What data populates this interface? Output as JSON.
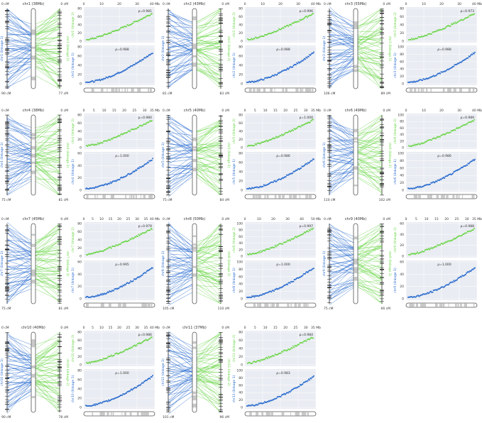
{
  "colors": {
    "blue": "#2f6fd0",
    "green": "#6cd64a",
    "panel_bg": "#e9ecf2",
    "grid": "#ffffff",
    "chrom_band": "#c9c9c9",
    "chrom_edge": "#555555",
    "text": "#333333"
  },
  "figure": {
    "panels": [
      {
        "id": "chr1",
        "chrom": "chr1 (38Mb)",
        "left_cm": "90 cM",
        "right_cm": "77 cM",
        "left_label": "chr1 (linkage 1)",
        "right_label": "chr1 (linkage 2)",
        "ticks": [
          "0",
          "10",
          "20",
          "30",
          "40 Mb"
        ],
        "r_top": "ρ=0.981",
        "r_bot": "ρ=0.988",
        "y_top": [
          0,
          20,
          40,
          60,
          80
        ],
        "y_bot": [
          0,
          20,
          40,
          60,
          80
        ]
      },
      {
        "id": "chr2",
        "chrom": "chr2 (43Mb)",
        "left_cm": "81 cM",
        "right_cm": "83 cM",
        "left_label": "chr2 (linkage 1)",
        "right_label": "chr2 (linkage 2)",
        "ticks": [
          "0",
          "10",
          "20",
          "30",
          "40 Mb"
        ],
        "r_top": "ρ=0.996",
        "r_bot": "ρ=0.988",
        "y_top": [
          0,
          20,
          40,
          60,
          80
        ],
        "y_bot": [
          0,
          20,
          40,
          60,
          80
        ]
      },
      {
        "id": "chr3",
        "chrom": "chr3 (55Mb)",
        "left_cm": "106 cM",
        "right_cm": "89 cM",
        "left_label": "chr3 (linkage 1)",
        "right_label": "chr3 (linkage 2)",
        "ticks": [
          "0",
          "10",
          "20",
          "30",
          "40 Mb"
        ],
        "r_top": "ρ=0.973",
        "r_bot": "ρ=0.988",
        "y_top": [
          0,
          20,
          40,
          60,
          80
        ],
        "y_bot": [
          0,
          20,
          40,
          60,
          80,
          100
        ]
      },
      {
        "id": "chr4",
        "chrom": "chr4 (38Mb)",
        "left_cm": "75 cM",
        "right_cm": "81 cM",
        "left_label": "chr4 (linkage 1)",
        "right_label": "chr4 (linkage 2)",
        "ticks": [
          "0",
          "5",
          "10",
          "15",
          "20",
          "25",
          "30",
          "35 Mb"
        ],
        "r_top": "ρ=0.980",
        "r_bot": "ρ=1.000",
        "y_top": [
          0,
          20,
          40,
          60,
          80
        ],
        "y_bot": [
          0,
          20,
          40,
          60
        ]
      },
      {
        "id": "chr5",
        "chrom": "chr5 (40Mb)",
        "left_cm": "75 cM",
        "right_cm": "84 cM",
        "left_label": "chr5 (linkage 1)",
        "right_label": "chr5 (linkage 2)",
        "ticks": [
          "0",
          "5",
          "10",
          "15",
          "20",
          "25",
          "30",
          "35 Mb"
        ],
        "r_top": "ρ=1.000",
        "r_bot": "ρ=0.986",
        "y_top": [
          0,
          20,
          40,
          60,
          80
        ],
        "y_bot": [
          0,
          20,
          40,
          60,
          80
        ]
      },
      {
        "id": "chr6",
        "chrom": "chr6 (49Mb)",
        "left_cm": "110 cM",
        "right_cm": "102 cM",
        "left_label": "chr6 (linkage 1)",
        "right_label": "chr6 (linkage 2)",
        "ticks": [
          "0",
          "10",
          "20",
          "30",
          "40 Mb"
        ],
        "r_top": "ρ=0.989",
        "r_bot": "ρ=0.986",
        "y_top": [
          0,
          20,
          40,
          60,
          80,
          100
        ],
        "y_bot": [
          0,
          20,
          40,
          60,
          80,
          100
        ]
      },
      {
        "id": "chr7",
        "chrom": "chr7 (45Mb)",
        "left_cm": "75 cM",
        "right_cm": "81 cM",
        "left_label": "chr7 (linkage 1)",
        "right_label": "chr7 (linkage 2)",
        "ticks": [
          "0",
          "5",
          "10",
          "15",
          "20",
          "25",
          "30",
          "35",
          "40 Mb"
        ],
        "r_top": "ρ=0.979",
        "r_bot": "ρ=0.995",
        "y_top": [
          0,
          20,
          40,
          60,
          80
        ],
        "y_bot": [
          0,
          20,
          40,
          60
        ]
      },
      {
        "id": "chr8",
        "chrom": "chr8 (50Mb)",
        "left_cm": "105 cM",
        "right_cm": "110 cM",
        "left_label": "chr8 (linkage 1)",
        "right_label": "chr8 (linkage 2)",
        "ticks": [
          "0",
          "10",
          "20",
          "30",
          "40",
          "50 Mb"
        ],
        "r_top": "ρ=0.997",
        "r_bot": "ρ=1.000",
        "y_top": [
          0,
          20,
          40,
          60,
          80,
          100
        ],
        "y_bot": [
          0,
          20,
          40,
          60,
          80,
          100
        ]
      },
      {
        "id": "chr9",
        "chrom": "chr9 (40Mb)",
        "left_cm": "75 cM",
        "right_cm": "66 cM",
        "left_label": "chr9 (linkage 1)",
        "right_label": "chr9 (linkage 2)",
        "ticks": [
          "0",
          "5",
          "10",
          "15",
          "20",
          "25",
          "30",
          "35 Mb"
        ],
        "r_top": "ρ=0.988",
        "r_bot": "ρ=1.000",
        "y_top": [
          0,
          20,
          40,
          60
        ],
        "y_bot": [
          0,
          20,
          40,
          60
        ]
      },
      {
        "id": "chr10",
        "chrom": "chr10 (40Mb)",
        "left_cm": "90 cM",
        "right_cm": "78 cM",
        "left_label": "chr10 (linkage 1)",
        "right_label": "chr10 (linkage 2)",
        "ticks": [
          "0",
          "5",
          "10",
          "15",
          "20",
          "25",
          "30",
          "35",
          "40 Mb"
        ],
        "r_top": "ρ=0.986",
        "r_bot": "ρ=1.000",
        "y_top": [
          0,
          20,
          40,
          60,
          80
        ],
        "y_bot": [
          0,
          20,
          40,
          60,
          80
        ]
      },
      {
        "id": "chr11",
        "chrom": "chr11 (37Mb)",
        "left_cm": "101 cM",
        "right_cm": "96 cM",
        "left_label": "chr11 (linkage 1)",
        "right_label": "chr11 (linkage 2)",
        "ticks": [
          "0",
          "5",
          "10",
          "15",
          "20",
          "25",
          "30",
          "35 Mb"
        ],
        "r_top": "ρ=0.984",
        "r_bot": "ρ=0.983",
        "y_top": [
          0,
          20,
          40,
          60,
          80
        ],
        "y_bot": [
          0,
          20,
          40,
          60,
          80,
          100
        ]
      }
    ]
  }
}
